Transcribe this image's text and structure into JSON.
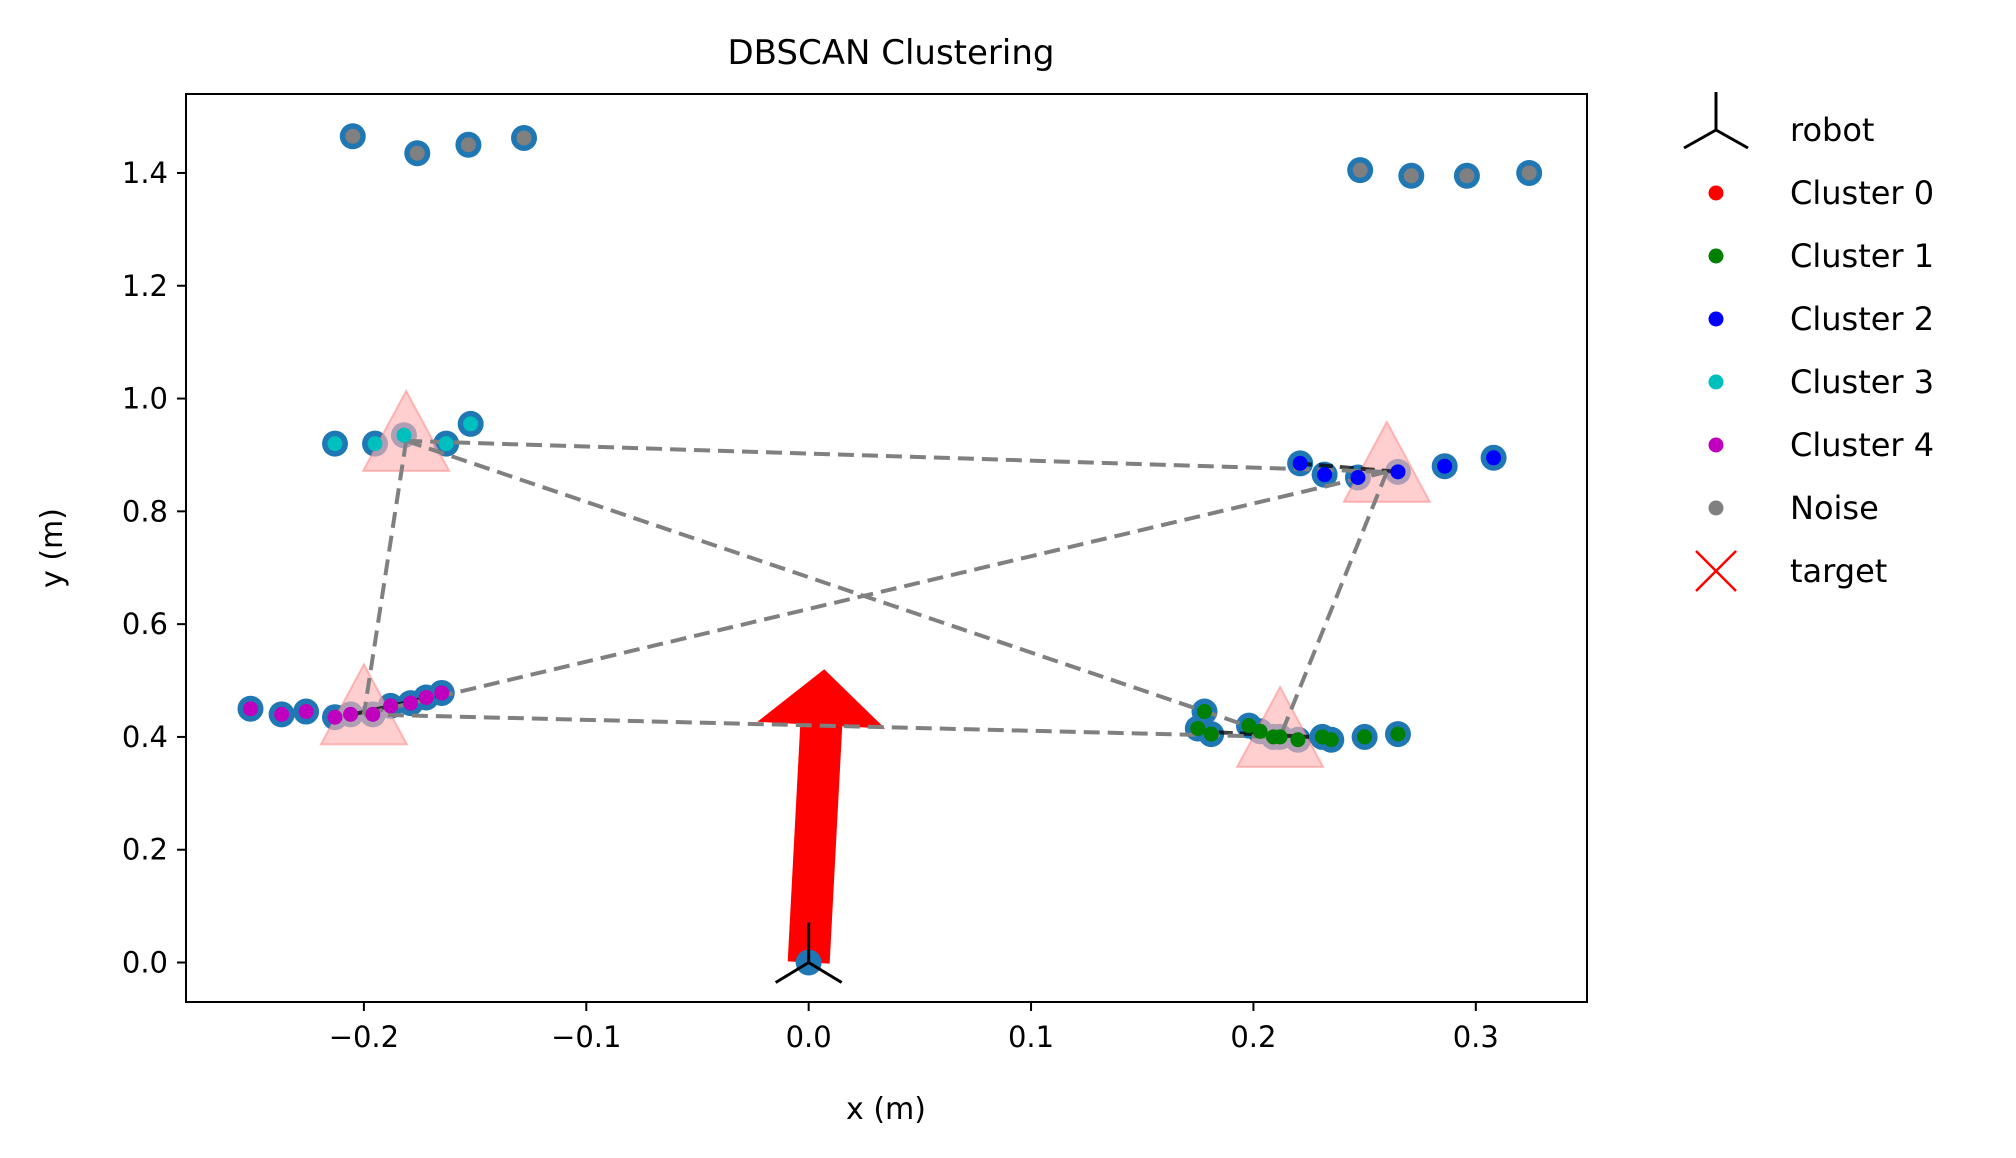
{
  "chart_data": {
    "type": "scatter",
    "title": "DBSCAN Clustering",
    "xlabel": "x (m)",
    "ylabel": "y (m)",
    "xlim": [
      -0.28,
      0.35
    ],
    "ylim": [
      -0.07,
      1.54
    ],
    "xticks": [
      -0.2,
      -0.1,
      0.0,
      0.1,
      0.2,
      0.3
    ],
    "xtick_labels": [
      "−0.2",
      "−0.1",
      "0.0",
      "0.1",
      "0.2",
      "0.3"
    ],
    "yticks": [
      0.0,
      0.2,
      0.4,
      0.6,
      0.8,
      1.0,
      1.2,
      1.4
    ],
    "ytick_labels": [
      "0.0",
      "0.2",
      "0.4",
      "0.6",
      "0.8",
      "1.0",
      "1.2",
      "1.4"
    ],
    "grid": false,
    "legend_position": "outside-right",
    "raw_points_color": "#1f77b4",
    "legend": [
      {
        "label": "robot",
        "marker": "tri",
        "color": "#000000"
      },
      {
        "label": "Cluster 0",
        "marker": "dot",
        "color": "#ff0000"
      },
      {
        "label": "Cluster 1",
        "marker": "dot",
        "color": "#008000"
      },
      {
        "label": "Cluster 2",
        "marker": "dot",
        "color": "#0000ff"
      },
      {
        "label": "Cluster 3",
        "marker": "dot",
        "color": "#00bfbf"
      },
      {
        "label": "Cluster 4",
        "marker": "dot",
        "color": "#bf00bf"
      },
      {
        "label": "Noise",
        "marker": "dot",
        "color": "#808080"
      },
      {
        "label": "target",
        "marker": "x",
        "color": "#ff0000"
      }
    ],
    "series": [
      {
        "name": "Cluster 1",
        "color": "#008000",
        "points": [
          [
            0.175,
            0.415
          ],
          [
            0.178,
            0.445
          ],
          [
            0.181,
            0.405
          ],
          [
            0.198,
            0.42
          ],
          [
            0.203,
            0.41
          ],
          [
            0.209,
            0.4
          ],
          [
            0.212,
            0.4
          ],
          [
            0.22,
            0.395
          ],
          [
            0.231,
            0.4
          ],
          [
            0.235,
            0.395
          ],
          [
            0.25,
            0.4
          ],
          [
            0.265,
            0.405
          ]
        ]
      },
      {
        "name": "Cluster 2",
        "color": "#0000ff",
        "points": [
          [
            0.221,
            0.885
          ],
          [
            0.232,
            0.865
          ],
          [
            0.247,
            0.86
          ],
          [
            0.265,
            0.87
          ],
          [
            0.286,
            0.88
          ],
          [
            0.308,
            0.895
          ]
        ]
      },
      {
        "name": "Cluster 3",
        "color": "#00bfbf",
        "points": [
          [
            -0.213,
            0.92
          ],
          [
            -0.195,
            0.92
          ],
          [
            -0.182,
            0.935
          ],
          [
            -0.163,
            0.92
          ],
          [
            -0.152,
            0.955
          ]
        ]
      },
      {
        "name": "Cluster 4",
        "color": "#bf00bf",
        "points": [
          [
            -0.251,
            0.45
          ],
          [
            -0.237,
            0.44
          ],
          [
            -0.226,
            0.445
          ],
          [
            -0.213,
            0.435
          ],
          [
            -0.206,
            0.44
          ],
          [
            -0.196,
            0.44
          ],
          [
            -0.188,
            0.455
          ],
          [
            -0.179,
            0.46
          ],
          [
            -0.172,
            0.47
          ],
          [
            -0.165,
            0.478
          ]
        ]
      },
      {
        "name": "Noise",
        "color": "#808080",
        "points": [
          [
            -0.205,
            1.465
          ],
          [
            -0.176,
            1.435
          ],
          [
            -0.153,
            1.45
          ],
          [
            -0.128,
            1.462
          ],
          [
            0.248,
            1.405
          ],
          [
            0.271,
            1.395
          ],
          [
            0.296,
            1.395
          ],
          [
            0.324,
            1.4
          ]
        ]
      }
    ],
    "centroids": [
      [
        -0.181,
        0.925
      ],
      [
        0.26,
        0.87
      ],
      [
        -0.2,
        0.44
      ],
      [
        0.212,
        0.4
      ]
    ],
    "centroid_color": "#ffb3b3",
    "connections": [
      [
        [
          -0.181,
          0.925
        ],
        [
          0.26,
          0.87
        ]
      ],
      [
        [
          -0.181,
          0.925
        ],
        [
          -0.2,
          0.44
        ]
      ],
      [
        [
          -0.181,
          0.925
        ],
        [
          0.212,
          0.4
        ]
      ],
      [
        [
          0.26,
          0.87
        ],
        [
          0.212,
          0.4
        ]
      ],
      [
        [
          0.26,
          0.87
        ],
        [
          -0.2,
          0.44
        ]
      ],
      [
        [
          -0.2,
          0.44
        ],
        [
          0.212,
          0.4
        ]
      ]
    ],
    "cluster_segments": [
      [
        [
          -0.205,
          0.44
        ],
        [
          -0.165,
          0.475
        ]
      ],
      [
        [
          0.22,
          0.885
        ],
        [
          0.265,
          0.87
        ]
      ],
      [
        [
          0.175,
          0.41
        ],
        [
          0.225,
          0.4
        ]
      ]
    ],
    "robot": [
      0.0,
      0.0
    ],
    "arrow": {
      "from": [
        0.0,
        0.0
      ],
      "to": [
        0.007,
        0.52
      ],
      "color": "#ff0000"
    }
  }
}
